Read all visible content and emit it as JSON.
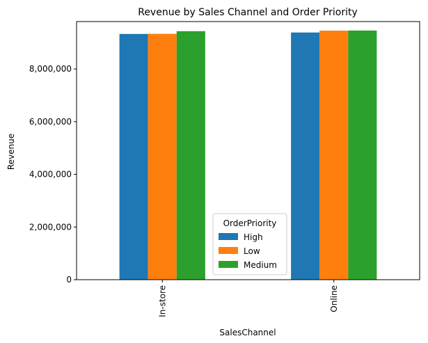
{
  "chart_data": {
    "type": "bar",
    "title": "Revenue by Sales Channel and Order Priority",
    "xlabel": "SalesChannel",
    "ylabel": "Revenue",
    "categories": [
      "In-store",
      "Online"
    ],
    "series": [
      {
        "name": "High",
        "values": [
          9330000,
          9385000
        ],
        "color": "#1f77b4"
      },
      {
        "name": "Low",
        "values": [
          9335000,
          9455000
        ],
        "color": "#ff7f0e"
      },
      {
        "name": "Medium",
        "values": [
          9435000,
          9460000
        ],
        "color": "#2ca02c"
      }
    ],
    "ylim": [
      0,
      9800000
    ],
    "yticks": [
      0,
      2000000,
      4000000,
      6000000,
      8000000
    ],
    "ytick_labels": [
      "0",
      "2,000,000",
      "4,000,000",
      "6,000,000",
      "8,000,000"
    ],
    "legend": {
      "title": "OrderPriority",
      "placement": "lower-center"
    },
    "grid": false
  }
}
